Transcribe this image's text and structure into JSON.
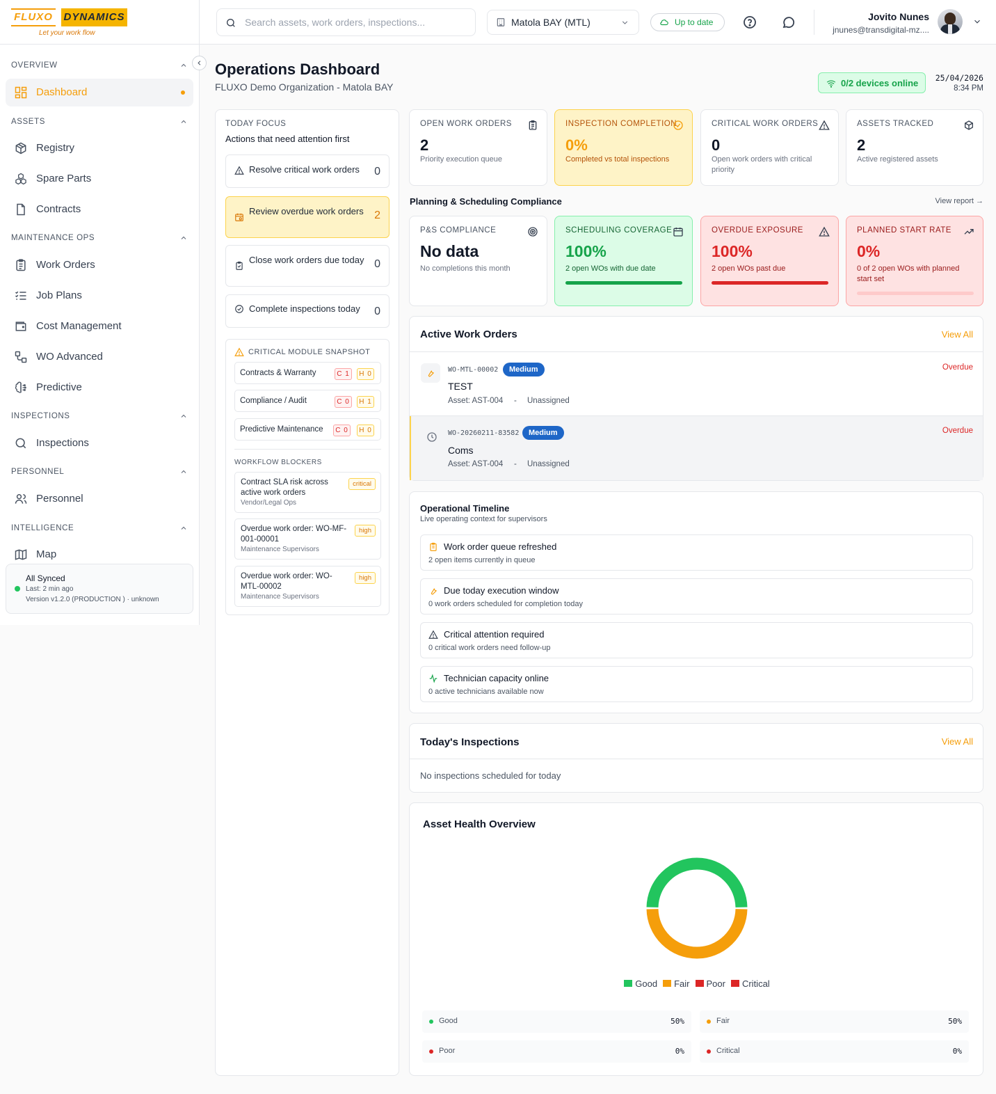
{
  "brand": {
    "word1": "FLUXO",
    "word2": "DYNAMICS",
    "tagline": "Let your work flow"
  },
  "header": {
    "search_placeholder": "Search assets, work orders, inspections...",
    "site": "Matola BAY (MTL)",
    "sync_status": "Up to date",
    "user_name": "Jovito Nunes",
    "user_email": "jnunes@transdigital-mz...."
  },
  "sidebar": {
    "sections": [
      {
        "label": "OVERVIEW",
        "items": [
          {
            "label": "Dashboard",
            "icon": "grid-icon",
            "active": true
          }
        ]
      },
      {
        "label": "ASSETS",
        "items": [
          {
            "label": "Registry",
            "icon": "box-icon"
          },
          {
            "label": "Spare Parts",
            "icon": "boxes-icon"
          },
          {
            "label": "Contracts",
            "icon": "file-icon"
          }
        ]
      },
      {
        "label": "MAINTENANCE OPS",
        "items": [
          {
            "label": "Work Orders",
            "icon": "clipboard-icon"
          },
          {
            "label": "Job Plans",
            "icon": "list-check-icon"
          },
          {
            "label": "Cost Management",
            "icon": "wallet-icon"
          },
          {
            "label": "WO Advanced",
            "icon": "workflow-icon"
          },
          {
            "label": "Predictive",
            "icon": "brain-icon"
          }
        ]
      },
      {
        "label": "INSPECTIONS",
        "items": [
          {
            "label": "Inspections",
            "icon": "search-icon"
          }
        ]
      },
      {
        "label": "PERSONNEL",
        "items": [
          {
            "label": "Personnel",
            "icon": "users-icon"
          }
        ]
      },
      {
        "label": "INTELLIGENCE",
        "items": [
          {
            "label": "Map",
            "icon": "map-icon"
          }
        ]
      }
    ],
    "sync": {
      "title": "All Synced",
      "last": "Last: 2 min ago",
      "version": "Version v1.2.0 (PRODUCTION ) · unknown"
    }
  },
  "page": {
    "title": "Operations Dashboard",
    "subtitle": "FLUXO Demo Organization - Matola BAY",
    "devices": "0/2 devices online",
    "date": "25/04/2026",
    "time": "8:34 PM"
  },
  "focus": {
    "label": "TODAY FOCUS",
    "title": "Actions that need attention first",
    "items": [
      {
        "text": "Resolve critical work orders",
        "count": "0"
      },
      {
        "text": "Review overdue work orders",
        "count": "2"
      },
      {
        "text": "Close work orders due today",
        "count": "0"
      },
      {
        "text": "Complete inspections today",
        "count": "0"
      }
    ],
    "snapshot_title": "CRITICAL MODULE SNAPSHOT",
    "snapshot": [
      {
        "name": "Contracts & Warranty",
        "c": "C 1",
        "h": "H 0"
      },
      {
        "name": "Compliance / Audit",
        "c": "C 0",
        "h": "H 1"
      },
      {
        "name": "Predictive Maintenance",
        "c": "C 0",
        "h": "H 0"
      }
    ],
    "blockers_title": "WORKFLOW BLOCKERS",
    "blockers": [
      {
        "title": "Contract SLA risk across active work orders",
        "sub": "Vendor/Legal Ops",
        "badge": "critical"
      },
      {
        "title": "Overdue work order: WO-MF-001-00001",
        "sub": "Maintenance Supervisors",
        "badge": "high"
      },
      {
        "title": "Overdue work order: WO-MTL-00002",
        "sub": "Maintenance Supervisors",
        "badge": "high"
      }
    ]
  },
  "kpis": [
    {
      "label": "OPEN WORK ORDERS",
      "value": "2",
      "sub": "Priority execution queue"
    },
    {
      "label": "INSPECTION COMPLETION",
      "value": "0%",
      "sub": "Completed vs total inspections"
    },
    {
      "label": "CRITICAL WORK ORDERS",
      "value": "0",
      "sub": "Open work orders with critical priority"
    },
    {
      "label": "ASSETS TRACKED",
      "value": "2",
      "sub": "Active registered assets"
    }
  ],
  "compliance": {
    "title": "Planning & Scheduling Compliance",
    "link": "View report →",
    "cards": [
      {
        "label": "P&S COMPLIANCE",
        "value": "No data",
        "sub": "No completions this month",
        "progress": null
      },
      {
        "label": "SCHEDULING COVERAGE",
        "value": "100%",
        "sub": "2 open WOs with due date",
        "progress": 1.0,
        "color": "#16a34a"
      },
      {
        "label": "OVERDUE EXPOSURE",
        "value": "100%",
        "sub": "2 open WOs past due",
        "progress": 1.0,
        "color": "#dc2626"
      },
      {
        "label": "PLANNED START RATE",
        "value": "0%",
        "sub": "0 of 2 open WOs with planned start set",
        "progress": 0.0,
        "color": "#dc2626"
      }
    ]
  },
  "active_wo": {
    "title": "Active Work Orders",
    "view_all": "View All",
    "items": [
      {
        "id": "WO-MTL-00002",
        "priority": "Medium",
        "name": "TEST",
        "asset": "Asset: AST-004",
        "sep": "-",
        "assignee": "Unassigned",
        "status": "Overdue"
      },
      {
        "id": "WO-20260211-83582",
        "priority": "Medium",
        "name": "Coms",
        "asset": "Asset: AST-004",
        "sep": "-",
        "assignee": "Unassigned",
        "status": "Overdue"
      }
    ]
  },
  "timeline": {
    "title": "Operational Timeline",
    "subtitle": "Live operating context for supervisors",
    "items": [
      {
        "title": "Work order queue refreshed",
        "sub": "2 open items currently in queue",
        "icon": "clipboard-icon",
        "color": "#f59e0b"
      },
      {
        "title": "Due today execution window",
        "sub": "0 work orders scheduled for completion today",
        "icon": "wrench-icon",
        "color": "#f59e0b"
      },
      {
        "title": "Critical attention required",
        "sub": "0 critical work orders need follow-up",
        "icon": "alert-icon",
        "color": "#374151"
      },
      {
        "title": "Technician capacity online",
        "sub": "0 active technicians available now",
        "icon": "activity-icon",
        "color": "#16a34a"
      }
    ]
  },
  "inspections": {
    "title": "Today's Inspections",
    "view_all": "View All",
    "empty": "No inspections scheduled for today"
  },
  "chart_data": {
    "type": "pie",
    "title": "Asset Health Overview",
    "categories": [
      "Good",
      "Fair",
      "Poor",
      "Critical"
    ],
    "values": [
      50,
      50,
      0,
      0
    ],
    "colors": [
      "#22c55e",
      "#f59e0b",
      "#dc2626",
      "#dc2626"
    ],
    "legend": "bottom"
  },
  "health": [
    {
      "label": "Good",
      "value": "50%",
      "color": "#22c55e"
    },
    {
      "label": "Fair",
      "value": "50%",
      "color": "#f59e0b"
    },
    {
      "label": "Poor",
      "value": "0%",
      "color": "#dc2626"
    },
    {
      "label": "Critical",
      "value": "0%",
      "color": "#dc2626"
    }
  ]
}
